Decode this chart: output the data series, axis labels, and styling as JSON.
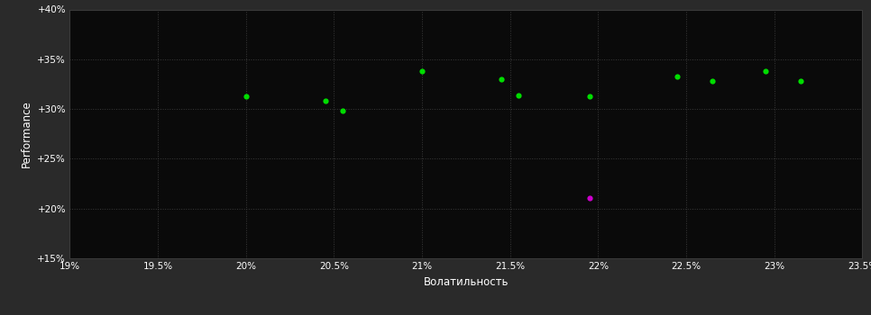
{
  "background_color": "#2a2a2a",
  "plot_bg_color": "#0a0a0a",
  "grid_color": "#3a3a3a",
  "text_color": "#ffffff",
  "xlabel": "Волатильность",
  "ylabel": "Performance",
  "xlim": [
    0.19,
    0.235
  ],
  "ylim": [
    0.15,
    0.4
  ],
  "xticks": [
    0.19,
    0.195,
    0.2,
    0.205,
    0.21,
    0.215,
    0.22,
    0.225,
    0.23,
    0.235
  ],
  "xtick_labels": [
    "19%",
    "19.5%",
    "20%",
    "20.5%",
    "21%",
    "21.5%",
    "22%",
    "22.5%",
    "23%",
    "23.5%"
  ],
  "yticks": [
    0.15,
    0.2,
    0.25,
    0.3,
    0.35,
    0.4
  ],
  "ytick_labels": [
    "+15%",
    "+20%",
    "+25%",
    "+30%",
    "+35%",
    "+40%"
  ],
  "green_points": [
    [
      0.2,
      0.313
    ],
    [
      0.2045,
      0.308
    ],
    [
      0.2055,
      0.298
    ],
    [
      0.21,
      0.338
    ],
    [
      0.2145,
      0.33
    ],
    [
      0.2155,
      0.314
    ],
    [
      0.2195,
      0.313
    ],
    [
      0.2245,
      0.333
    ],
    [
      0.2265,
      0.328
    ],
    [
      0.2295,
      0.338
    ],
    [
      0.2315,
      0.328
    ]
  ],
  "magenta_points": [
    [
      0.2195,
      0.211
    ]
  ],
  "point_size": 20,
  "green_color": "#00dd00",
  "magenta_color": "#cc00cc"
}
